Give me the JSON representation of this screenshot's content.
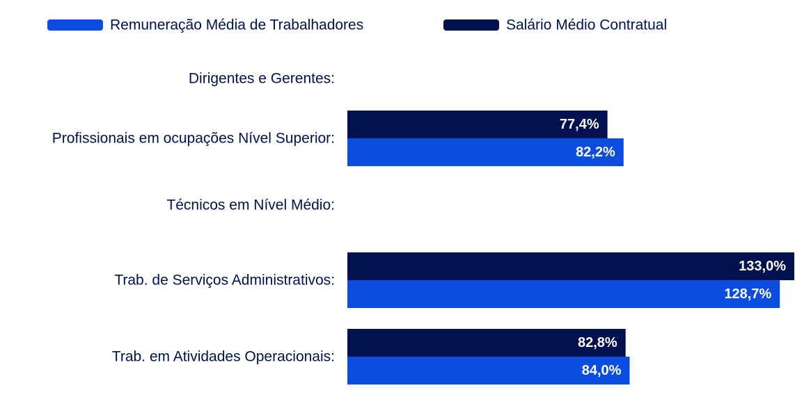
{
  "colors": {
    "remuneracao": "#0b4de0",
    "salario": "#001150",
    "text": "#001150",
    "value_label": "#ffffff"
  },
  "chart_data": {
    "type": "bar",
    "orientation": "horizontal",
    "categories": [
      "Dirigentes e Gerentes:",
      "Profissionais em ocupações Nível Superior:",
      "Técnicos em Nível Médio:",
      "Trab. de Serviços Administrativos:",
      "Trab. em Atividades Operacionais:"
    ],
    "series": [
      {
        "name": "Salário Médio Contratual",
        "color": "#001150",
        "values": [
          null,
          77.4,
          null,
          133.0,
          82.8
        ],
        "labels": [
          "",
          "77,4%",
          "",
          "133,0%",
          "82,8%"
        ]
      },
      {
        "name": "Remuneração Média de Trabalhadores",
        "color": "#0b4de0",
        "values": [
          null,
          82.2,
          null,
          128.7,
          84.0
        ],
        "labels": [
          "",
          "82,2%",
          "",
          "128,7%",
          "84,0%"
        ]
      }
    ],
    "legend": [
      {
        "name": "Remuneração Média de Trabalhadores",
        "color": "#0b4de0"
      },
      {
        "name": "Salário Médio Contratual",
        "color": "#001150"
      }
    ],
    "legend_position": "top",
    "xlim": [
      0,
      133
    ],
    "grid": false,
    "title": "",
    "xlabel": "",
    "ylabel": ""
  }
}
